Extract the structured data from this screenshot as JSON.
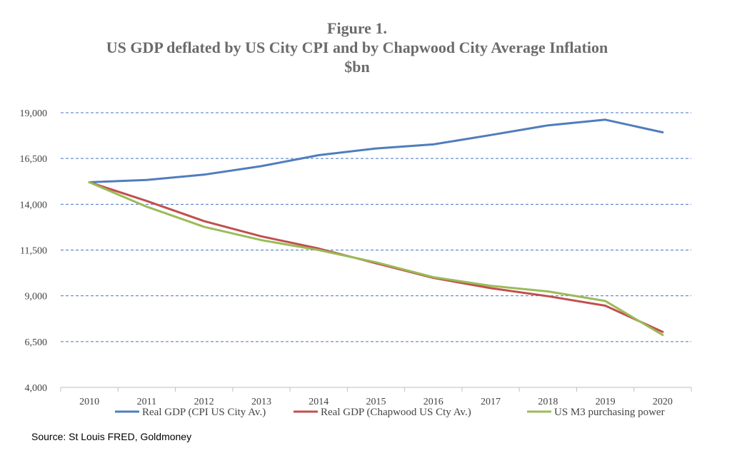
{
  "chart_data": {
    "type": "line",
    "title": "Figure 1.",
    "subtitle": "US GDP deflated by US City CPI and by Chapwood City Average Inflation",
    "unit_label": "$bn",
    "x": [
      "2010",
      "2011",
      "2012",
      "2013",
      "2014",
      "2015",
      "2016",
      "2017",
      "2018",
      "2019",
      "2020"
    ],
    "ylim": [
      4000,
      19000
    ],
    "yticks": [
      4000,
      6500,
      9000,
      11500,
      14000,
      16500,
      19000
    ],
    "ytick_labels": [
      "4,000",
      "6,500",
      "9,000",
      "11,500",
      "14,000",
      "16,500",
      "19,000"
    ],
    "grid": "horizontal dashed",
    "legend_position": "bottom",
    "series": [
      {
        "name": "Real GDP (CPI US City Av.)",
        "color": "#4f7dbd",
        "values": [
          15200,
          15330,
          15620,
          16080,
          16680,
          17050,
          17270,
          17780,
          18310,
          18620,
          17930
        ]
      },
      {
        "name": "Real GDP (Chapwood US Cty Av.)",
        "color": "#c0504d",
        "values": [
          15200,
          14180,
          13080,
          12250,
          11580,
          10780,
          9980,
          9420,
          8980,
          8460,
          7030
        ]
      },
      {
        "name": "US M3 purchasing power",
        "color": "#9bbb59",
        "values": [
          15200,
          13870,
          12770,
          12040,
          11500,
          10830,
          10020,
          9550,
          9240,
          8720,
          6860
        ]
      }
    ]
  },
  "source": "Source: St Louis FRED, Goldmoney"
}
